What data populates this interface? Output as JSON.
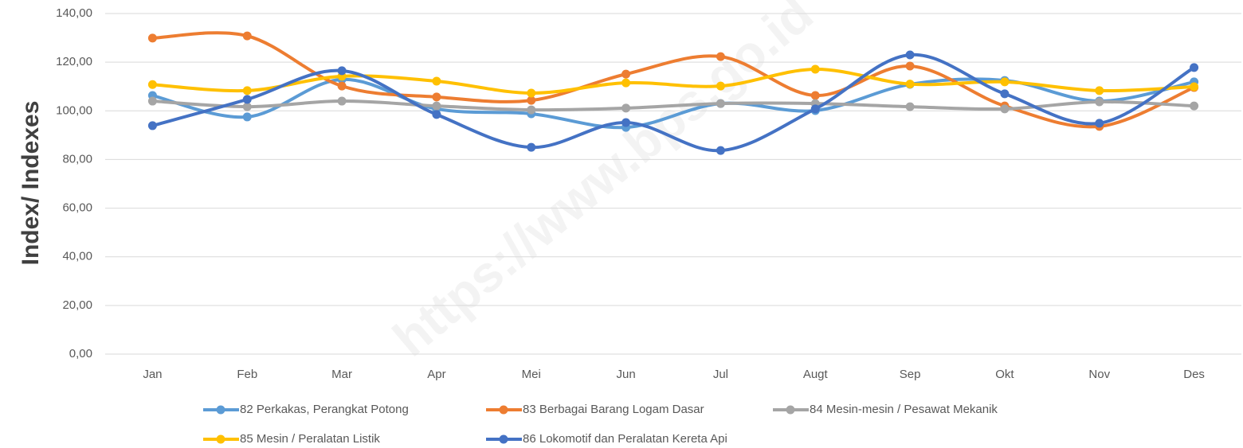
{
  "chart_data": {
    "type": "line",
    "smooth": true,
    "ylabel": "Index/ Indexes",
    "watermark": "https://www.bps.go.id",
    "categories": [
      "Jan",
      "Feb",
      "Mar",
      "Apr",
      "Mei",
      "Jun",
      "Jul",
      "Augt",
      "Sep",
      "Okt",
      "Nov",
      "Des"
    ],
    "series": [
      {
        "name": "82 Perkakas, Perangkat Potong",
        "color": "#5b9bd5",
        "values": [
          106.3,
          97.5,
          112.9,
          100.8,
          98.8,
          93.2,
          103,
          100.1,
          110.9,
          112.5,
          104,
          111.9
        ]
      },
      {
        "name": "83 Berbagai Barang Logam Dasar",
        "color": "#ed7d31",
        "values": [
          129.9,
          130.8,
          110.2,
          105.7,
          104.3,
          115.1,
          122.3,
          106.3,
          118.4,
          102,
          93.6,
          109.6
        ]
      },
      {
        "name": "84 Mesin-mesin / Pesawat Mekanik",
        "color": "#a5a5a5",
        "values": [
          104,
          101.7,
          104,
          102,
          100.4,
          101.1,
          103,
          103,
          101.7,
          100.8,
          103.7,
          102
        ]
      },
      {
        "name": "85 Mesin / Peralatan Listik",
        "color": "#ffc000",
        "values": [
          110.8,
          108.3,
          114.2,
          112.2,
          107.3,
          111.5,
          110.2,
          117.1,
          111,
          111.9,
          108.3,
          109.9
        ]
      },
      {
        "name": "86 Lokomotif dan Peralatan Kereta Api",
        "color": "#4472c4",
        "values": [
          93.9,
          104.7,
          116.5,
          98.5,
          85,
          95.2,
          83.7,
          100.8,
          123,
          107,
          94.9,
          117.8
        ]
      }
    ],
    "ylim": [
      0,
      140
    ],
    "yticks": [
      {
        "value": 0,
        "label": "0,00"
      },
      {
        "value": 20,
        "label": "20,00"
      },
      {
        "value": 40,
        "label": "40,00"
      },
      {
        "value": 60,
        "label": "60,00"
      },
      {
        "value": 80,
        "label": "80,00"
      },
      {
        "value": 100,
        "label": "100,00"
      },
      {
        "value": 120,
        "label": "120,00"
      },
      {
        "value": 140,
        "label": "140,00"
      }
    ],
    "grid": true,
    "legend": "bottom"
  }
}
